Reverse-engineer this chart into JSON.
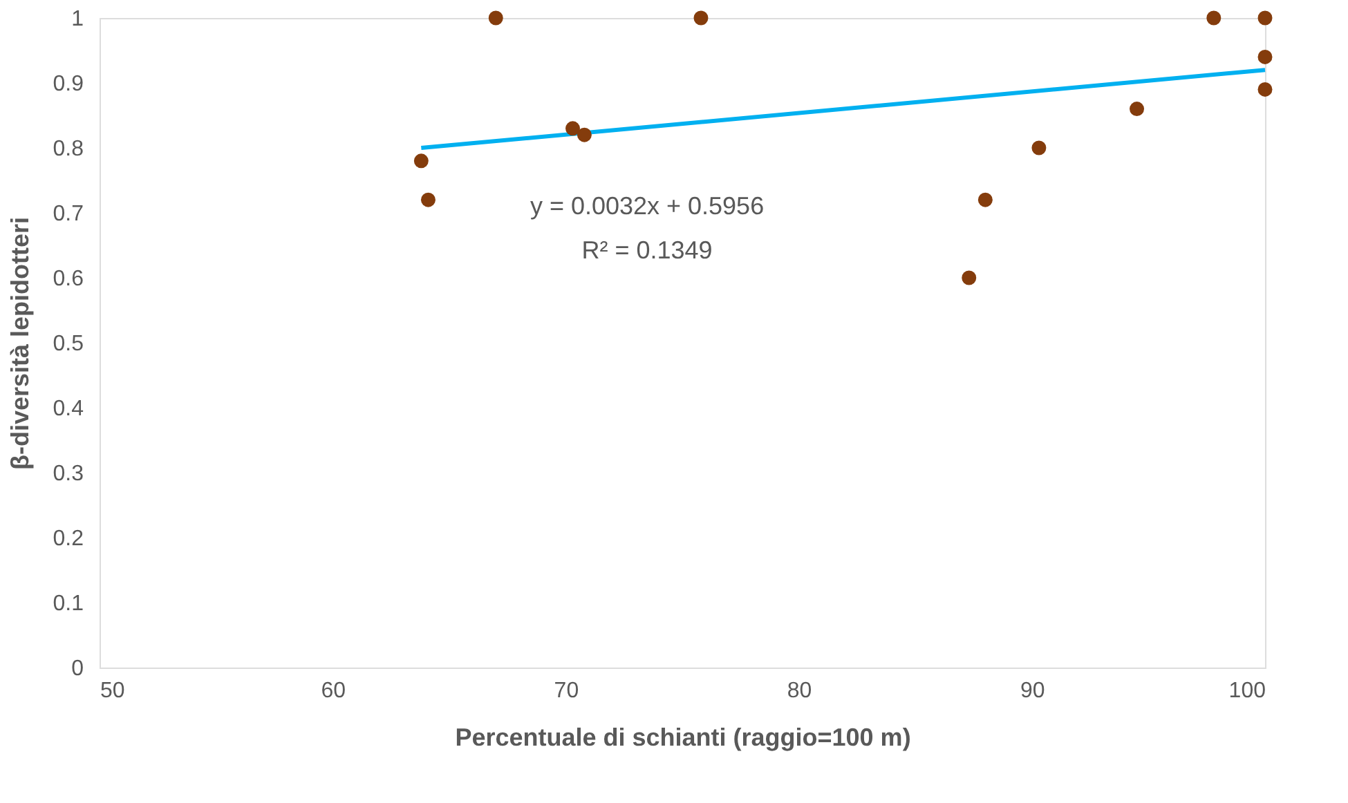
{
  "chart_data": {
    "type": "scatter",
    "xlabel": "Percentuale di schianti (raggio=100 m)",
    "ylabel": "β-diversità lepidotteri",
    "xlim": [
      50,
      100
    ],
    "xticks": [
      50,
      60,
      70,
      80,
      90,
      100
    ],
    "ylim": [
      0,
      1
    ],
    "yticks": [
      0,
      0.1,
      0.2,
      0.3,
      0.4,
      0.5,
      0.6,
      0.7,
      0.8,
      0.9,
      1
    ],
    "grid": false,
    "series": [
      {
        "color": "#843c0c",
        "marker": "circle",
        "x": [
          63.8,
          64.1,
          67.0,
          70.3,
          70.8,
          75.8,
          87.3,
          88.0,
          90.3,
          94.5,
          97.8,
          100,
          100,
          100
        ],
        "values": [
          0.78,
          0.72,
          1.0,
          0.83,
          0.82,
          1.0,
          0.6,
          0.72,
          0.8,
          0.86,
          1.0,
          1.0,
          0.94,
          0.89
        ]
      },
      {
        "type": "line",
        "marker": "none",
        "color": "#00b0f0",
        "x": [
          63.8,
          100
        ],
        "values": [
          0.8,
          0.92
        ]
      }
    ],
    "annotations": [
      "y = 0.0032x + 0.5956",
      "R² = 0.1349"
    ]
  }
}
